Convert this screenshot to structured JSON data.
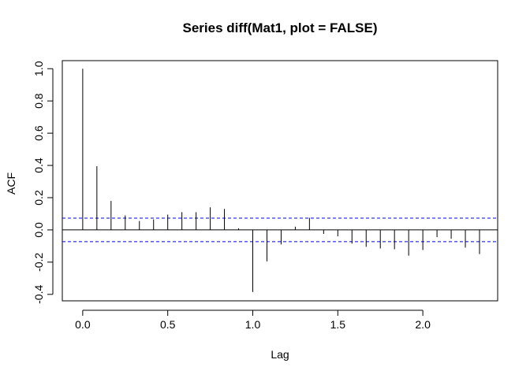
{
  "chart_data": {
    "type": "acf",
    "title": "Series  diff(Mat1, plot = FALSE)",
    "xlabel": "Lag",
    "ylabel": "ACF",
    "xlim": [
      -0.12,
      2.44
    ],
    "ylim": [
      -0.44,
      1.05
    ],
    "xticks": [
      0.0,
      0.5,
      1.0,
      1.5,
      2.0
    ],
    "xtick_labels": [
      "0.0",
      "0.5",
      "1.0",
      "1.5",
      "2.0"
    ],
    "yticks": [
      -0.4,
      -0.2,
      0.0,
      0.2,
      0.4,
      0.6,
      0.8,
      1.0
    ],
    "ytick_labels": [
      "-0.4",
      "-0.2",
      "0.0",
      "0.2",
      "0.4",
      "0.6",
      "0.8",
      "1.0"
    ],
    "confidence_bound": 0.073,
    "confidence_color": "#0000ff",
    "zero_line": true,
    "lags": [
      0.0,
      0.0833,
      0.1667,
      0.25,
      0.3333,
      0.4167,
      0.5,
      0.5833,
      0.6667,
      0.75,
      0.8333,
      0.9167,
      1.0,
      1.0833,
      1.1667,
      1.25,
      1.3333,
      1.4167,
      1.5,
      1.5833,
      1.6667,
      1.75,
      1.8333,
      1.9167,
      2.0,
      2.0833,
      2.1667,
      2.25,
      2.3333
    ],
    "acf": [
      1.0,
      0.395,
      0.18,
      0.09,
      0.055,
      0.065,
      0.095,
      0.11,
      0.11,
      0.14,
      0.13,
      0.01,
      -0.385,
      -0.195,
      -0.09,
      0.02,
      0.075,
      -0.025,
      -0.04,
      -0.085,
      -0.105,
      -0.115,
      -0.12,
      -0.16,
      -0.125,
      -0.045,
      -0.055,
      -0.11,
      -0.15
    ]
  }
}
